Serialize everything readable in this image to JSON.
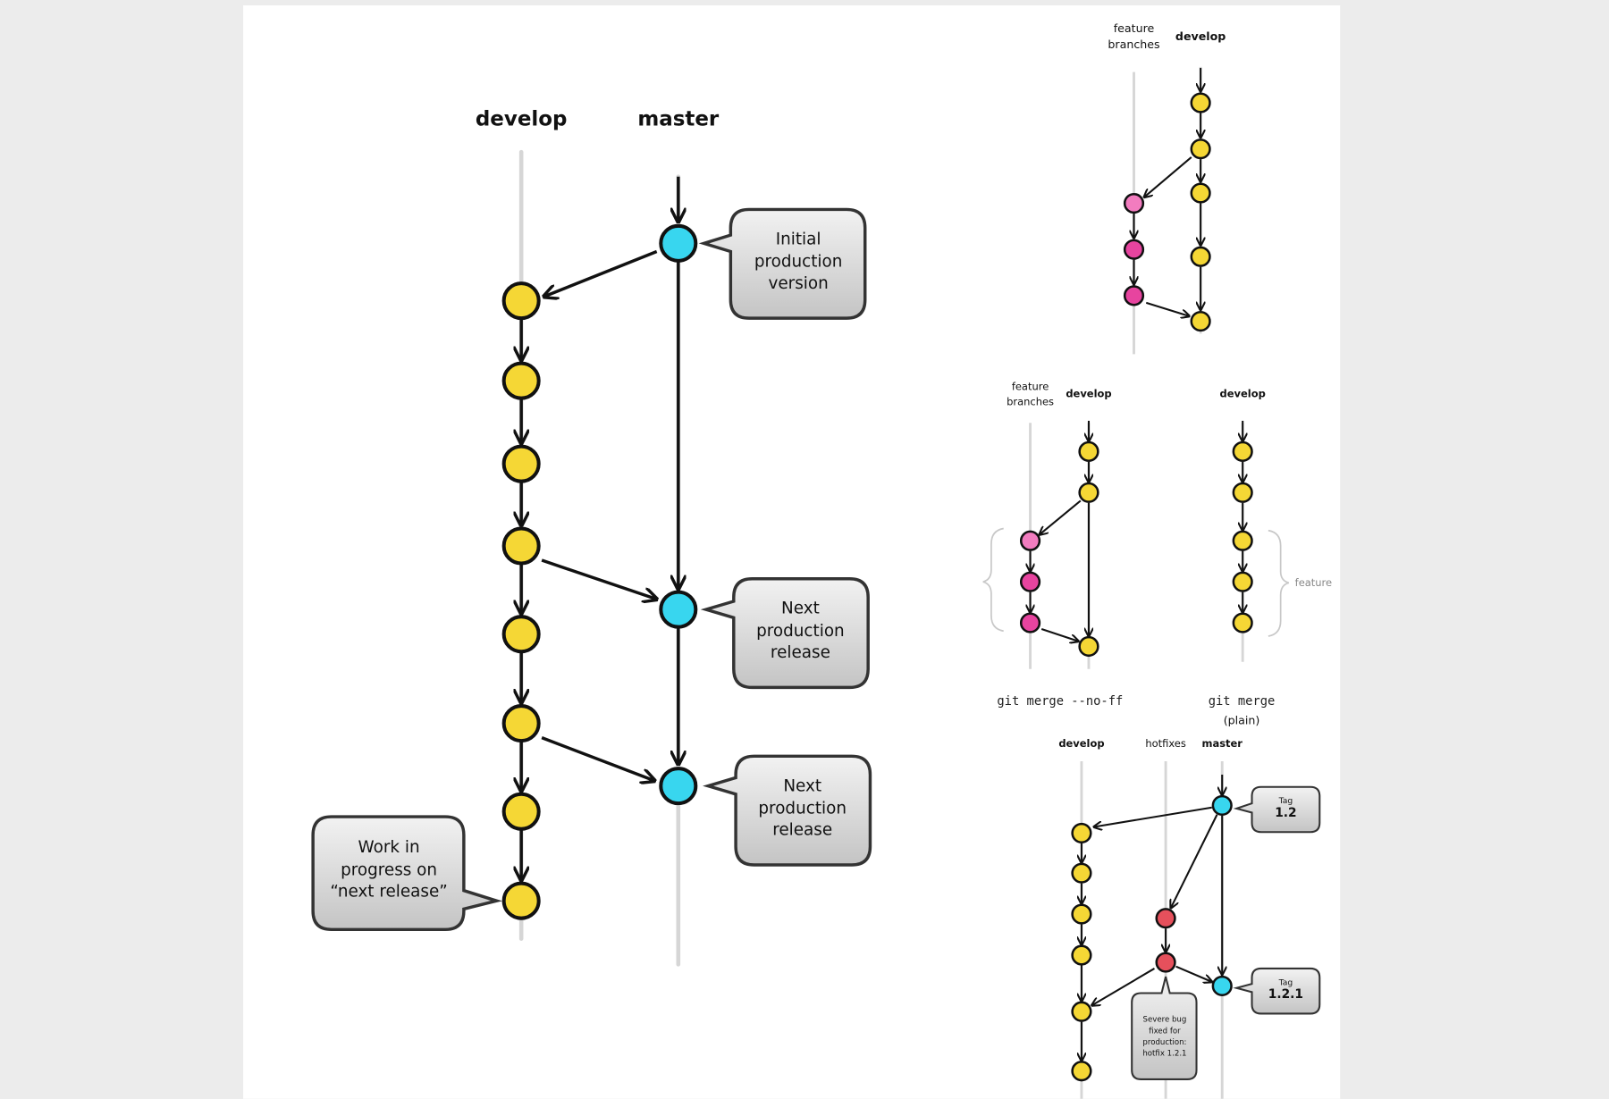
{
  "colors": {
    "background": "#ececec",
    "panel": "#ffffff",
    "develop_commit": "#f5d735",
    "master_commit": "#38d6ef",
    "feature_commit": "#e7449f",
    "feature_commit_first": "#f27cbf",
    "hotfix_commit": "#e6505c"
  },
  "main": {
    "develop_label": "develop",
    "master_label": "master",
    "bubble_initial": [
      "Initial",
      "production",
      "version"
    ],
    "bubble_next1": [
      "Next",
      "production",
      "release"
    ],
    "bubble_next2": [
      "Next",
      "production",
      "release"
    ],
    "bubble_wip": [
      "Work in",
      "progress on",
      "“next release”"
    ]
  },
  "feature_diagram": {
    "feature_label": [
      "feature",
      "branches"
    ],
    "develop_label": "develop"
  },
  "merge_noff": {
    "feature_label": [
      "feature",
      "branches"
    ],
    "develop_label": "develop",
    "caption": "git merge --no-ff"
  },
  "merge_plain": {
    "develop_label": "develop",
    "brace_label": "feature",
    "caption": "git merge",
    "caption_sub": "(plain)"
  },
  "hotfix_diagram": {
    "develop_label": "develop",
    "hotfixes_label": "hotfixes",
    "master_label": "master",
    "tag1_small": "Tag",
    "tag1_big": "1.2",
    "tag2_small": "Tag",
    "tag2_big": "1.2.1",
    "bug_note": [
      "Severe bug",
      "fixed for",
      "production:",
      "hotfix 1.2.1"
    ]
  }
}
